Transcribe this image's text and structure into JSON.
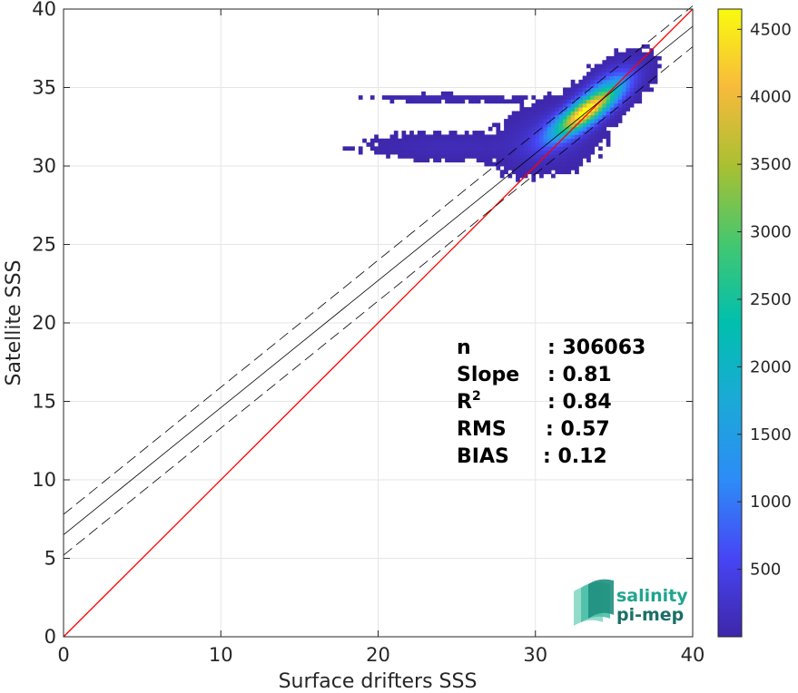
{
  "chart_data": {
    "type": "heatmap",
    "xlabel": "Surface drifters SSS",
    "ylabel": "Satellite SSS",
    "xlim": [
      0,
      40
    ],
    "ylim": [
      0,
      40
    ],
    "xticks": [
      0,
      10,
      20,
      30,
      40
    ],
    "yticks": [
      0,
      5,
      10,
      15,
      20,
      25,
      30,
      35,
      40
    ],
    "grid": true,
    "colormap": "parula",
    "colorbar": {
      "range": [
        0,
        4650
      ],
      "ticks": [
        500,
        1000,
        1500,
        2000,
        2500,
        3000,
        3500,
        4000,
        4500
      ]
    },
    "lines": [
      {
        "kind": "identity",
        "color": "#ff0000",
        "points": [
          [
            0,
            0
          ],
          [
            40,
            40
          ]
        ]
      },
      {
        "kind": "regression",
        "color": "#000000",
        "style": "solid",
        "points": [
          [
            0,
            6.5
          ],
          [
            40,
            38.9
          ]
        ]
      },
      {
        "kind": "regression-upper",
        "color": "#000000",
        "style": "dashed",
        "points": [
          [
            0,
            7.8
          ],
          [
            40,
            40.2
          ]
        ]
      },
      {
        "kind": "regression-lower",
        "color": "#000000",
        "style": "dashed",
        "points": [
          [
            0,
            5.2
          ],
          [
            40,
            37.6
          ]
        ]
      }
    ],
    "density_clusters": [
      {
        "x": 33.0,
        "y": 33.3,
        "sx": 1.3,
        "sy": 1.0,
        "rho": 0.8,
        "peak": 4600
      },
      {
        "x": 34.6,
        "y": 34.9,
        "sx": 1.1,
        "sy": 0.9,
        "rho": 0.6,
        "peak": 950
      },
      {
        "x": 30.8,
        "y": 31.8,
        "sx": 1.6,
        "sy": 1.1,
        "rho": 0.3,
        "peak": 350
      },
      {
        "x": 24.5,
        "y": 31.1,
        "sx": 3.0,
        "sy": 0.45,
        "rho": 0.0,
        "peak": 120
      },
      {
        "x": 24.0,
        "y": 34.2,
        "sx": 2.5,
        "sy": 0.15,
        "rho": 0.0,
        "peak": 90
      }
    ],
    "stats": [
      {
        "label": "n",
        "value": ": 306063"
      },
      {
        "label": "Slope",
        "value": ": 0.81"
      },
      {
        "label": "R",
        "superscript": "2",
        "value": ": 0.84"
      },
      {
        "label": "RMS",
        "value": ": 0.57"
      },
      {
        "label": "BIAS",
        "value": ": 0.12"
      }
    ]
  },
  "logo": {
    "line1": "salinity",
    "line2": "pi-mep"
  },
  "colors": {
    "identity": "#ff0000",
    "regression": "#000000",
    "logo_top": "#1fa58f",
    "logo_bottom": "#1b6f68"
  }
}
